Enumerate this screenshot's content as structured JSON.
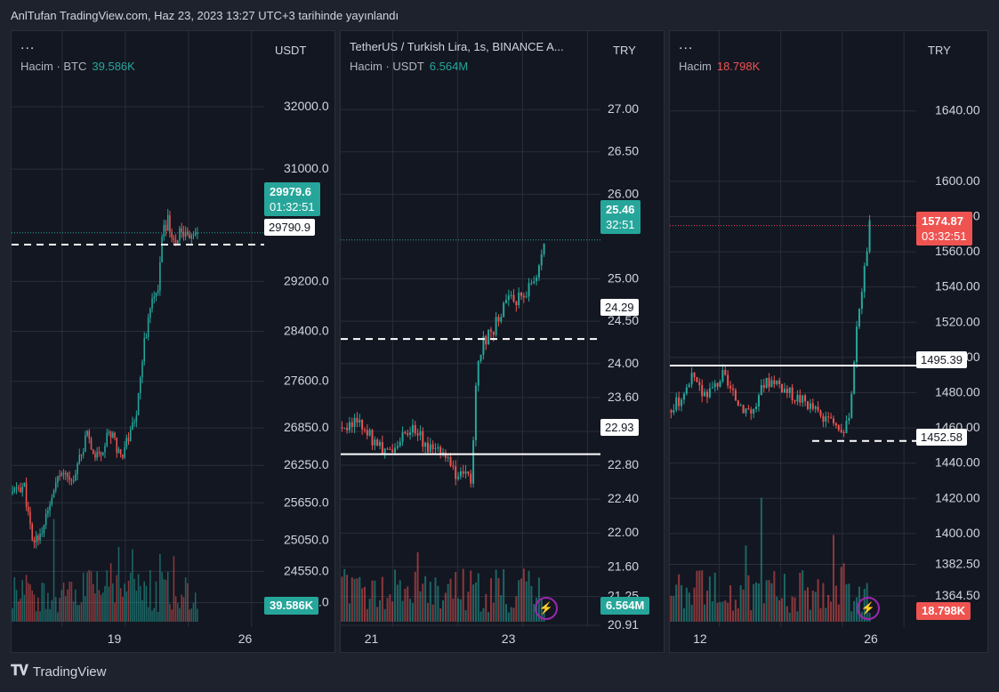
{
  "header": {
    "text": "AnlTufan TradingView.com, Haz 23, 2023 13:27 UTC+3 tarihinde yayınlandı"
  },
  "footer": {
    "brand": "TradingView"
  },
  "colors": {
    "up": "#26a69a",
    "down": "#ef5350",
    "bg": "#131722",
    "grid": "#2a2e39",
    "text": "#b2b5be"
  },
  "panels": [
    {
      "menu": "...",
      "title": "",
      "volume_label": "Hacim · BTC",
      "volume_value": "39.586K",
      "volume_color": "#26a69a",
      "currency": "USDT",
      "ticks": [
        "32000.0",
        "31000.0",
        "29200.0",
        "28400.0",
        "27600.0",
        "26850.0",
        "26250.0",
        "25650.0",
        "25050.0",
        "24550.0",
        "24050.0"
      ],
      "x_ticks": [
        "19",
        "26"
      ],
      "price_box": {
        "value": "29979.6",
        "timer": "01:32:51",
        "color": "#26a69a"
      },
      "line_label": "29790.9",
      "volume_box": {
        "value": "39.586K",
        "color": "#26a69a"
      },
      "bolt_icon": false
    },
    {
      "menu": "",
      "title": "TetherUS / Turkish Lira, 1s, BINANCE  A...",
      "volume_label": "Hacim · USDT",
      "volume_value": "6.564M",
      "volume_color": "#26a69a",
      "currency": "TRY",
      "ticks": [
        "27.00",
        "26.50",
        "26.00",
        "25.00",
        "24.50",
        "24.00",
        "23.60",
        "23.20",
        "22.80",
        "22.40",
        "22.00",
        "21.60",
        "21.25",
        "20.91"
      ],
      "x_ticks": [
        "21",
        "23"
      ],
      "price_box": {
        "value": "25.46",
        "timer": "32:51",
        "color": "#26a69a"
      },
      "line_labels": [
        "24.29",
        "22.93"
      ],
      "volume_box": {
        "value": "6.564M",
        "color": "#26a69a"
      },
      "bolt_icon": true
    },
    {
      "menu": "...",
      "title": "",
      "volume_label": "Hacim",
      "volume_value": "18.798K",
      "volume_color": "#ef5350",
      "currency": "TRY",
      "ticks": [
        "1640.00",
        "1600.00",
        "1580.00",
        "1560.00",
        "1540.00",
        "1520.00",
        "1500.00",
        "1480.00",
        "1460.00",
        "1440.00",
        "1420.00",
        "1400.00",
        "1382.50",
        "1364.50"
      ],
      "x_ticks": [
        "12",
        "26"
      ],
      "price_box": {
        "value": "1574.87",
        "timer": "03:32:51",
        "color": "#ef5350"
      },
      "line_labels": [
        "1495.39",
        "1452.58"
      ],
      "volume_box": {
        "value": "18.798K",
        "color": "#ef5350"
      },
      "bolt_icon": true
    }
  ],
  "chart_data": [
    {
      "type": "candlestick",
      "title": "",
      "quote": "USDT",
      "ylim": [
        23800,
        32500
      ],
      "x_ticks": [
        "19",
        "26"
      ],
      "y_ticks": [
        32000,
        31000,
        29200,
        28400,
        27600,
        26850,
        26250,
        25650,
        25050,
        24550,
        24050
      ],
      "last_price": 29979.6,
      "horizontal_lines": [
        29790.9
      ],
      "keypoints": [
        [
          0,
          25800
        ],
        [
          3,
          25900
        ],
        [
          6,
          25900
        ],
        [
          10,
          25000
        ],
        [
          15,
          25200
        ],
        [
          22,
          25900
        ],
        [
          26,
          26200
        ],
        [
          30,
          26000
        ],
        [
          34,
          26400
        ],
        [
          38,
          26700
        ],
        [
          42,
          26400
        ],
        [
          46,
          26550
        ],
        [
          50,
          26800
        ],
        [
          55,
          26400
        ],
        [
          60,
          26800
        ],
        [
          63,
          27100
        ],
        [
          66,
          28000
        ],
        [
          70,
          28800
        ],
        [
          74,
          29000
        ],
        [
          76,
          29900
        ],
        [
          79,
          30200
        ],
        [
          82,
          29800
        ],
        [
          86,
          30000
        ],
        [
          90,
          29950
        ],
        [
          94,
          29980
        ]
      ],
      "seed": 11,
      "volume_last": "39.586K"
    },
    {
      "type": "candlestick",
      "title": "TetherUS / Turkish Lira, 1s, BINANCE",
      "quote": "TRY",
      "ylim": [
        20.91,
        27.4
      ],
      "x_ticks": [
        "21",
        "23"
      ],
      "y_ticks": [
        27.0,
        26.5,
        26.0,
        25.0,
        24.5,
        24.0,
        23.6,
        23.2,
        22.8,
        22.4,
        22.0,
        21.6,
        21.25,
        20.91
      ],
      "last_price": 25.46,
      "horizontal_lines": [
        24.29,
        22.93
      ],
      "keypoints": [
        [
          0,
          23.25
        ],
        [
          4,
          23.3
        ],
        [
          8,
          23.28
        ],
        [
          12,
          23.1
        ],
        [
          16,
          23.0
        ],
        [
          20,
          22.95
        ],
        [
          25,
          23.2
        ],
        [
          29,
          23.25
        ],
        [
          33,
          23.05
        ],
        [
          38,
          22.95
        ],
        [
          42,
          22.85
        ],
        [
          46,
          22.6
        ],
        [
          49,
          22.8
        ],
        [
          51,
          22.55
        ],
        [
          53,
          23.8
        ],
        [
          56,
          24.25
        ],
        [
          60,
          24.4
        ],
        [
          64,
          24.7
        ],
        [
          68,
          24.75
        ],
        [
          72,
          24.8
        ],
        [
          76,
          24.95
        ],
        [
          78,
          25.2
        ],
        [
          80,
          25.46
        ]
      ],
      "seed": 5,
      "volume_last": "6.564M"
    },
    {
      "type": "candlestick",
      "title": "",
      "quote": "TRY",
      "ylim": [
        1357,
        1655
      ],
      "x_ticks": [
        "12",
        "26"
      ],
      "y_ticks": [
        1640,
        1600,
        1580,
        1560,
        1540,
        1520,
        1500,
        1480,
        1460,
        1440,
        1420,
        1400,
        1382.5,
        1364.5
      ],
      "last_price": 1574.87,
      "horizontal_lines": [
        1495.39,
        1452.58
      ],
      "keypoints": [
        [
          0,
          1470
        ],
        [
          4,
          1478
        ],
        [
          8,
          1488
        ],
        [
          12,
          1480
        ],
        [
          16,
          1482
        ],
        [
          20,
          1490
        ],
        [
          24,
          1478
        ],
        [
          28,
          1472
        ],
        [
          32,
          1470
        ],
        [
          36,
          1485
        ],
        [
          40,
          1488
        ],
        [
          44,
          1482
        ],
        [
          48,
          1478
        ],
        [
          52,
          1475
        ],
        [
          56,
          1470
        ],
        [
          60,
          1463
        ],
        [
          64,
          1462
        ],
        [
          67,
          1460
        ],
        [
          69,
          1462
        ],
        [
          71,
          1500
        ],
        [
          73,
          1530
        ],
        [
          75,
          1550
        ],
        [
          77,
          1575
        ]
      ],
      "seed": 3,
      "volume_last": "18.798K"
    }
  ]
}
